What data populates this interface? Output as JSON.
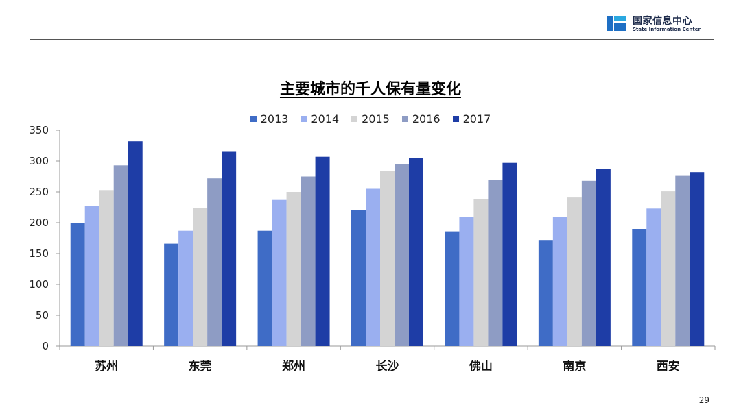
{
  "header": {
    "logo_cn": "国家信息中心",
    "logo_en": "State Information Center",
    "logo_icon": "state-information-center-logo-icon",
    "logo_colors": [
      "#1e6fc4",
      "#2aa8e0"
    ]
  },
  "page_number": "29",
  "chart_data": {
    "type": "bar",
    "title": "主要城市的千人保有量变化",
    "xlabel": "",
    "ylabel": "",
    "ylim": [
      0,
      350
    ],
    "yticks": [
      "0",
      "50",
      "100",
      "150",
      "200",
      "250",
      "300",
      "350"
    ],
    "grid": false,
    "legend_position": "top",
    "categories": [
      "苏州",
      "东莞",
      "郑州",
      "长沙",
      "佛山",
      "南京",
      "西安"
    ],
    "series": [
      {
        "name": "2013",
        "color": "#3f6cc6",
        "values": [
          199,
          166,
          187,
          220,
          186,
          172,
          190
        ]
      },
      {
        "name": "2014",
        "color": "#9aaff0",
        "values": [
          227,
          187,
          237,
          255,
          209,
          209,
          223
        ]
      },
      {
        "name": "2015",
        "color": "#d4d4d4",
        "values": [
          253,
          224,
          250,
          284,
          238,
          241,
          251
        ]
      },
      {
        "name": "2016",
        "color": "#8e9cc4",
        "values": [
          293,
          272,
          275,
          295,
          270,
          268,
          276
        ]
      },
      {
        "name": "2017",
        "color": "#1e3da6",
        "values": [
          332,
          315,
          307,
          305,
          297,
          287,
          282
        ]
      }
    ]
  }
}
